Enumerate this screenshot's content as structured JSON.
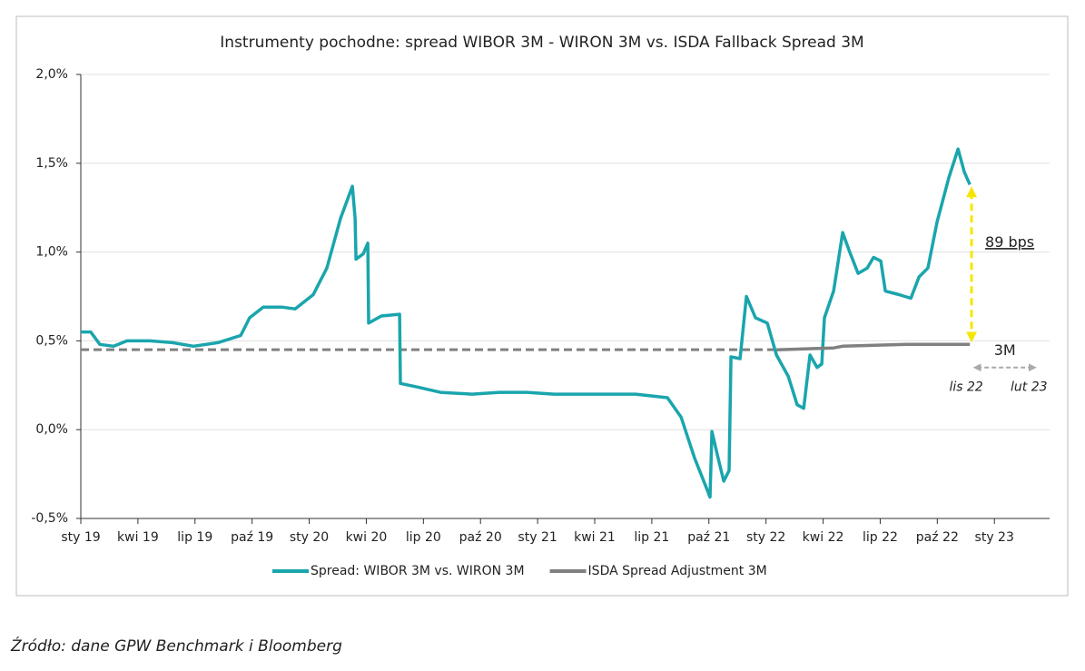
{
  "chart_data": {
    "type": "line",
    "title": "Instrumenty pochodne: spread WIBOR 3M - WIRON 3M vs. ISDA Fallback Spread 3M",
    "xlim": [
      0,
      50.9
    ],
    "xticks": [
      {
        "value": 0,
        "label": "sty 19"
      },
      {
        "value": 3,
        "label": "kwi 19"
      },
      {
        "value": 6,
        "label": "lip 19"
      },
      {
        "value": 9,
        "label": "paź 19"
      },
      {
        "value": 12,
        "label": "sty 20"
      },
      {
        "value": 15,
        "label": "kwi 20"
      },
      {
        "value": 18,
        "label": "lip 20"
      },
      {
        "value": 21,
        "label": "paź 20"
      },
      {
        "value": 24,
        "label": "sty 21"
      },
      {
        "value": 27,
        "label": "kwi 21"
      },
      {
        "value": 30,
        "label": "lip 21"
      },
      {
        "value": 33,
        "label": "paź 21"
      },
      {
        "value": 36,
        "label": "sty 22"
      },
      {
        "value": 39,
        "label": "kwi 22"
      },
      {
        "value": 42,
        "label": "lip 22"
      },
      {
        "value": 45,
        "label": "paź 22"
      },
      {
        "value": 48,
        "label": "sty 23"
      }
    ],
    "ylim": [
      -0.5,
      2.0
    ],
    "yticks": [
      {
        "value": -0.5,
        "label": "-0,5%"
      },
      {
        "value": 0,
        "label": "0,0%"
      },
      {
        "value": 0.5,
        "label": "0,5%"
      },
      {
        "value": 1.0,
        "label": "1,0%"
      },
      {
        "value": 1.5,
        "label": "1,5%"
      },
      {
        "value": 2.0,
        "label": "2,0%"
      }
    ],
    "grid": true,
    "legend": "bottom",
    "series": [
      {
        "name": "Spread: WIBOR 3M vs. WIRON 3M",
        "color": "#1aa5ad",
        "x": [
          0,
          0.52,
          1.0,
          1.72,
          2.43,
          3.63,
          4.82,
          5.92,
          7.2,
          8.4,
          8.87,
          9.59,
          10.54,
          11.26,
          12.21,
          12.93,
          13.65,
          14.27,
          14.41,
          14.46,
          14.84,
          15.08,
          15.12,
          15.79,
          16.75,
          16.79,
          17.7,
          18.89,
          20.56,
          21.99,
          23.43,
          24.86,
          26.77,
          29.15,
          30.82,
          31.54,
          32.25,
          32.73,
          33.06,
          33.16,
          33.44,
          33.78,
          34.06,
          34.16,
          34.64,
          34.97,
          35.45,
          36.07,
          36.55,
          37.17,
          37.64,
          37.98,
          38.31,
          38.69,
          38.93,
          39.07,
          39.55,
          40.03,
          40.36,
          40.84,
          41.32,
          41.65,
          42.03,
          42.27,
          42.99,
          43.61,
          44.04,
          44.51,
          44.99,
          45.61,
          46.09,
          46.42,
          46.71
        ],
        "values": [
          0.55,
          0.55,
          0.48,
          0.47,
          0.5,
          0.5,
          0.49,
          0.47,
          0.49,
          0.53,
          0.63,
          0.69,
          0.69,
          0.68,
          0.76,
          0.91,
          1.19,
          1.37,
          1.19,
          0.96,
          0.99,
          1.05,
          0.6,
          0.64,
          0.65,
          0.26,
          0.24,
          0.21,
          0.2,
          0.21,
          0.21,
          0.2,
          0.2,
          0.2,
          0.18,
          0.07,
          -0.16,
          -0.29,
          -0.38,
          -0.01,
          -0.14,
          -0.29,
          -0.23,
          0.41,
          0.4,
          0.75,
          0.63,
          0.6,
          0.42,
          0.3,
          0.14,
          0.12,
          0.42,
          0.35,
          0.37,
          0.63,
          0.78,
          1.11,
          1.01,
          0.88,
          0.91,
          0.97,
          0.95,
          0.78,
          0.76,
          0.74,
          0.86,
          0.91,
          1.17,
          1.42,
          1.58,
          1.45,
          1.38
        ]
      },
      {
        "name": "ISDA Spread Adjustment 3M",
        "color": "#808080",
        "x": [
          36.55,
          39.55,
          40.03,
          43.4,
          46.71
        ],
        "values": [
          0.45,
          0.46,
          0.47,
          0.48,
          0.48
        ]
      }
    ],
    "reference_line": {
      "value": 0.45,
      "color": "#808080",
      "style": "dashed"
    },
    "annotations": [
      {
        "text": "89 bps",
        "x": 46.8,
        "from": 1.38,
        "to": 0.48,
        "color": "#f5e600"
      },
      {
        "text": "3M",
        "y": 0.35,
        "color": "#aaaaaa",
        "start": {
          "x": 46.9,
          "label": "lis 22"
        },
        "end": {
          "x": 50.2,
          "label": "lut 23"
        }
      }
    ]
  },
  "source": "Źródło: dane GPW Benchmark i Bloomberg"
}
